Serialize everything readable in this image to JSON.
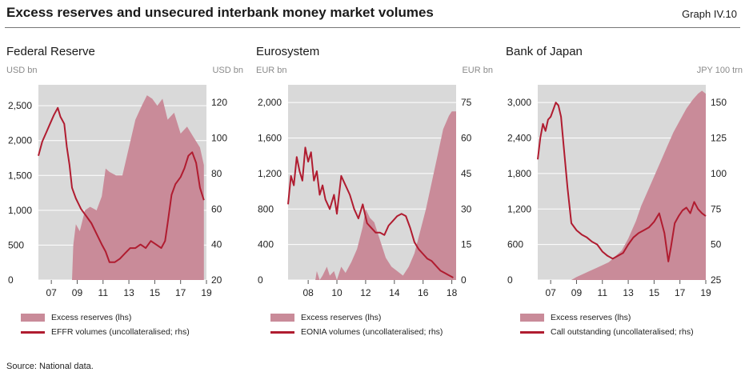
{
  "title": "Excess reserves and unsecured interbank money market volumes",
  "graph_id": "Graph IV.10",
  "source": "Source: National data.",
  "colors": {
    "area": "#c98b99",
    "line": "#b01c30",
    "plot_bg": "#d9d9d9",
    "grid": "#ffffff"
  },
  "chart_data": [
    {
      "type": "area",
      "panel_title": "Federal Reserve",
      "left_unit": "USD bn",
      "right_unit": "USD bn",
      "grid": true,
      "xlim": [
        2006,
        2019
      ],
      "x_ticks": [
        {
          "v": 2007,
          "label": "07"
        },
        {
          "v": 2009,
          "label": "09"
        },
        {
          "v": 2011,
          "label": "11"
        },
        {
          "v": 2013,
          "label": "13"
        },
        {
          "v": 2015,
          "label": "15"
        },
        {
          "v": 2017,
          "label": "17"
        },
        {
          "v": 2019,
          "label": "19"
        }
      ],
      "left_axis": {
        "lim": [
          0,
          2800
        ],
        "ticks": [
          0,
          500,
          1000,
          1500,
          2000,
          2500
        ],
        "tick_labels": [
          "0",
          "500",
          "1,000",
          "1,500",
          "2,000",
          "2,500"
        ]
      },
      "right_axis": {
        "lim": [
          20,
          130
        ],
        "ticks": [
          20,
          40,
          60,
          80,
          100,
          120
        ],
        "tick_labels": [
          "20",
          "40",
          "60",
          "80",
          "100",
          "120"
        ]
      },
      "series": [
        {
          "name": "Excess reserves (lhs)",
          "kind": "area",
          "axis": "left",
          "x": [
            2006.0,
            2008.6,
            2008.7,
            2008.9,
            2009.2,
            2009.6,
            2010.0,
            2010.5,
            2010.9,
            2011.2,
            2011.5,
            2012.0,
            2012.5,
            2013.0,
            2013.5,
            2014.0,
            2014.4,
            2014.8,
            2015.2,
            2015.6,
            2016.0,
            2016.5,
            2017.0,
            2017.5,
            2018.0,
            2018.5,
            2018.8
          ],
          "y": [
            0,
            0,
            500,
            800,
            700,
            1000,
            1050,
            1000,
            1200,
            1600,
            1550,
            1500,
            1500,
            1900,
            2300,
            2500,
            2650,
            2600,
            2500,
            2600,
            2300,
            2400,
            2100,
            2200,
            2050,
            1900,
            1650
          ]
        },
        {
          "name": "EFFR volumes (uncollateralised; rhs)",
          "kind": "line",
          "axis": "right",
          "x": [
            2006.0,
            2006.3,
            2006.6,
            2006.9,
            2007.2,
            2007.5,
            2007.7,
            2008.0,
            2008.2,
            2008.4,
            2008.6,
            2008.9,
            2009.3,
            2009.7,
            2010.1,
            2010.5,
            2010.9,
            2011.2,
            2011.5,
            2011.9,
            2012.3,
            2012.7,
            2013.1,
            2013.5,
            2013.9,
            2014.3,
            2014.7,
            2015.1,
            2015.5,
            2015.8,
            2016.0,
            2016.3,
            2016.6,
            2017.0,
            2017.3,
            2017.6,
            2017.9,
            2018.2,
            2018.5,
            2018.8
          ],
          "y": [
            90,
            98,
            103,
            108,
            113,
            117,
            112,
            108,
            95,
            85,
            72,
            66,
            60,
            56,
            52,
            46,
            40,
            36,
            30,
            30,
            32,
            35,
            38,
            38,
            40,
            38,
            42,
            40,
            38,
            42,
            52,
            68,
            74,
            78,
            83,
            90,
            92,
            86,
            72,
            65
          ]
        }
      ]
    },
    {
      "type": "area",
      "panel_title": "Eurosystem",
      "left_unit": "EUR bn",
      "right_unit": "EUR bn",
      "grid": true,
      "xlim": [
        2006.6,
        2018.3
      ],
      "x_ticks": [
        {
          "v": 2008,
          "label": "08"
        },
        {
          "v": 2010,
          "label": "10"
        },
        {
          "v": 2012,
          "label": "12"
        },
        {
          "v": 2014,
          "label": "14"
        },
        {
          "v": 2016,
          "label": "16"
        },
        {
          "v": 2018,
          "label": "18"
        }
      ],
      "left_axis": {
        "lim": [
          0,
          2200
        ],
        "ticks": [
          0,
          400,
          800,
          1200,
          1600,
          2000
        ],
        "tick_labels": [
          "0",
          "400",
          "800",
          "1,200",
          "1,600",
          "2,000"
        ]
      },
      "right_axis": {
        "lim": [
          0,
          82.5
        ],
        "ticks": [
          0,
          15,
          30,
          45,
          60,
          75
        ],
        "tick_labels": [
          "0",
          "15",
          "30",
          "45",
          "60",
          "75"
        ]
      },
      "series": [
        {
          "name": "Excess reserves (lhs)",
          "kind": "area",
          "axis": "left",
          "x": [
            2006.6,
            2008.5,
            2008.6,
            2008.8,
            2009.0,
            2009.3,
            2009.5,
            2009.8,
            2010.0,
            2010.3,
            2010.6,
            2011.0,
            2011.4,
            2011.8,
            2012.0,
            2012.3,
            2012.6,
            2013.0,
            2013.4,
            2013.8,
            2014.2,
            2014.6,
            2015.0,
            2015.4,
            2015.8,
            2016.2,
            2016.6,
            2017.0,
            2017.4,
            2017.8,
            2018.0,
            2018.3
          ],
          "y": [
            0,
            0,
            100,
            0,
            50,
            150,
            50,
            100,
            0,
            150,
            80,
            200,
            350,
            600,
            800,
            700,
            650,
            450,
            250,
            150,
            100,
            50,
            150,
            300,
            550,
            800,
            1100,
            1400,
            1700,
            1850,
            1900,
            1900
          ]
        },
        {
          "name": "EONIA volumes (uncollateralised; rhs)",
          "kind": "line",
          "axis": "right",
          "x": [
            2006.6,
            2006.8,
            2007.0,
            2007.2,
            2007.4,
            2007.6,
            2007.8,
            2008.0,
            2008.2,
            2008.4,
            2008.6,
            2008.8,
            2009.0,
            2009.2,
            2009.5,
            2009.8,
            2010.0,
            2010.3,
            2010.6,
            2010.9,
            2011.2,
            2011.5,
            2011.8,
            2012.1,
            2012.4,
            2012.7,
            2013.0,
            2013.3,
            2013.6,
            2013.9,
            2014.2,
            2014.5,
            2014.8,
            2015.1,
            2015.4,
            2015.7,
            2016.0,
            2016.3,
            2016.6,
            2016.9,
            2017.2,
            2017.5,
            2017.8,
            2018.1
          ],
          "y": [
            32,
            44,
            40,
            52,
            46,
            42,
            56,
            50,
            54,
            42,
            46,
            36,
            40,
            34,
            30,
            36,
            28,
            44,
            40,
            36,
            30,
            26,
            32,
            24,
            22,
            20,
            20,
            19,
            23,
            25,
            27,
            28,
            27,
            22,
            16,
            13,
            11,
            9,
            8,
            6,
            4,
            3,
            2,
            1
          ]
        }
      ]
    },
    {
      "type": "area",
      "panel_title": "Bank of Japan",
      "left_unit": "",
      "right_unit": "JPY 100 trn",
      "grid": true,
      "xlim": [
        2006.0,
        2019.0
      ],
      "x_ticks": [
        {
          "v": 2007,
          "label": "07"
        },
        {
          "v": 2009,
          "label": "09"
        },
        {
          "v": 2011,
          "label": "11"
        },
        {
          "v": 2013,
          "label": "13"
        },
        {
          "v": 2015,
          "label": "15"
        },
        {
          "v": 2017,
          "label": "17"
        },
        {
          "v": 2019,
          "label": "19"
        }
      ],
      "left_axis": {
        "lim": [
          0,
          3300
        ],
        "ticks": [
          0,
          600,
          1200,
          1800,
          2400,
          3000
        ],
        "tick_labels": [
          "0",
          "600",
          "1,200",
          "1,800",
          "2,400",
          "3,000"
        ]
      },
      "right_axis": {
        "lim": [
          25,
          162.5
        ],
        "ticks": [
          25,
          50,
          75,
          100,
          125,
          150
        ],
        "tick_labels": [
          "25",
          "50",
          "75",
          "100",
          "125",
          "150"
        ]
      },
      "series": [
        {
          "name": "Excess reserves (lhs)",
          "kind": "area",
          "axis": "left",
          "x": [
            2006.0,
            2008.6,
            2009.0,
            2009.5,
            2010.0,
            2010.5,
            2011.0,
            2011.5,
            2012.0,
            2012.5,
            2013.0,
            2013.3,
            2013.6,
            2014.0,
            2014.5,
            2015.0,
            2015.5,
            2016.0,
            2016.5,
            2017.0,
            2017.5,
            2018.0,
            2018.4,
            2018.7,
            2019.0
          ],
          "y": [
            0,
            0,
            50,
            100,
            150,
            200,
            250,
            300,
            400,
            500,
            700,
            850,
            1000,
            1250,
            1500,
            1750,
            2000,
            2250,
            2500,
            2700,
            2900,
            3050,
            3150,
            3200,
            3150
          ]
        },
        {
          "name": "Call outstanding (uncollateralised; rhs)",
          "kind": "line",
          "axis": "right",
          "x": [
            2006.0,
            2006.2,
            2006.4,
            2006.6,
            2006.8,
            2007.0,
            2007.2,
            2007.4,
            2007.6,
            2007.8,
            2008.0,
            2008.3,
            2008.6,
            2009.0,
            2009.4,
            2009.8,
            2010.2,
            2010.6,
            2011.0,
            2011.4,
            2011.8,
            2012.2,
            2012.6,
            2013.0,
            2013.4,
            2013.8,
            2014.2,
            2014.6,
            2015.0,
            2015.4,
            2015.8,
            2016.1,
            2016.3,
            2016.6,
            2016.9,
            2017.2,
            2017.5,
            2017.8,
            2018.1,
            2018.4,
            2018.7,
            2019.0
          ],
          "y": [
            110,
            125,
            135,
            130,
            138,
            140,
            145,
            150,
            148,
            140,
            120,
            90,
            65,
            60,
            57,
            55,
            52,
            50,
            45,
            42,
            40,
            42,
            44,
            50,
            55,
            58,
            60,
            62,
            66,
            72,
            58,
            38,
            48,
            65,
            70,
            74,
            76,
            72,
            80,
            75,
            72,
            70
          ]
        }
      ]
    }
  ]
}
